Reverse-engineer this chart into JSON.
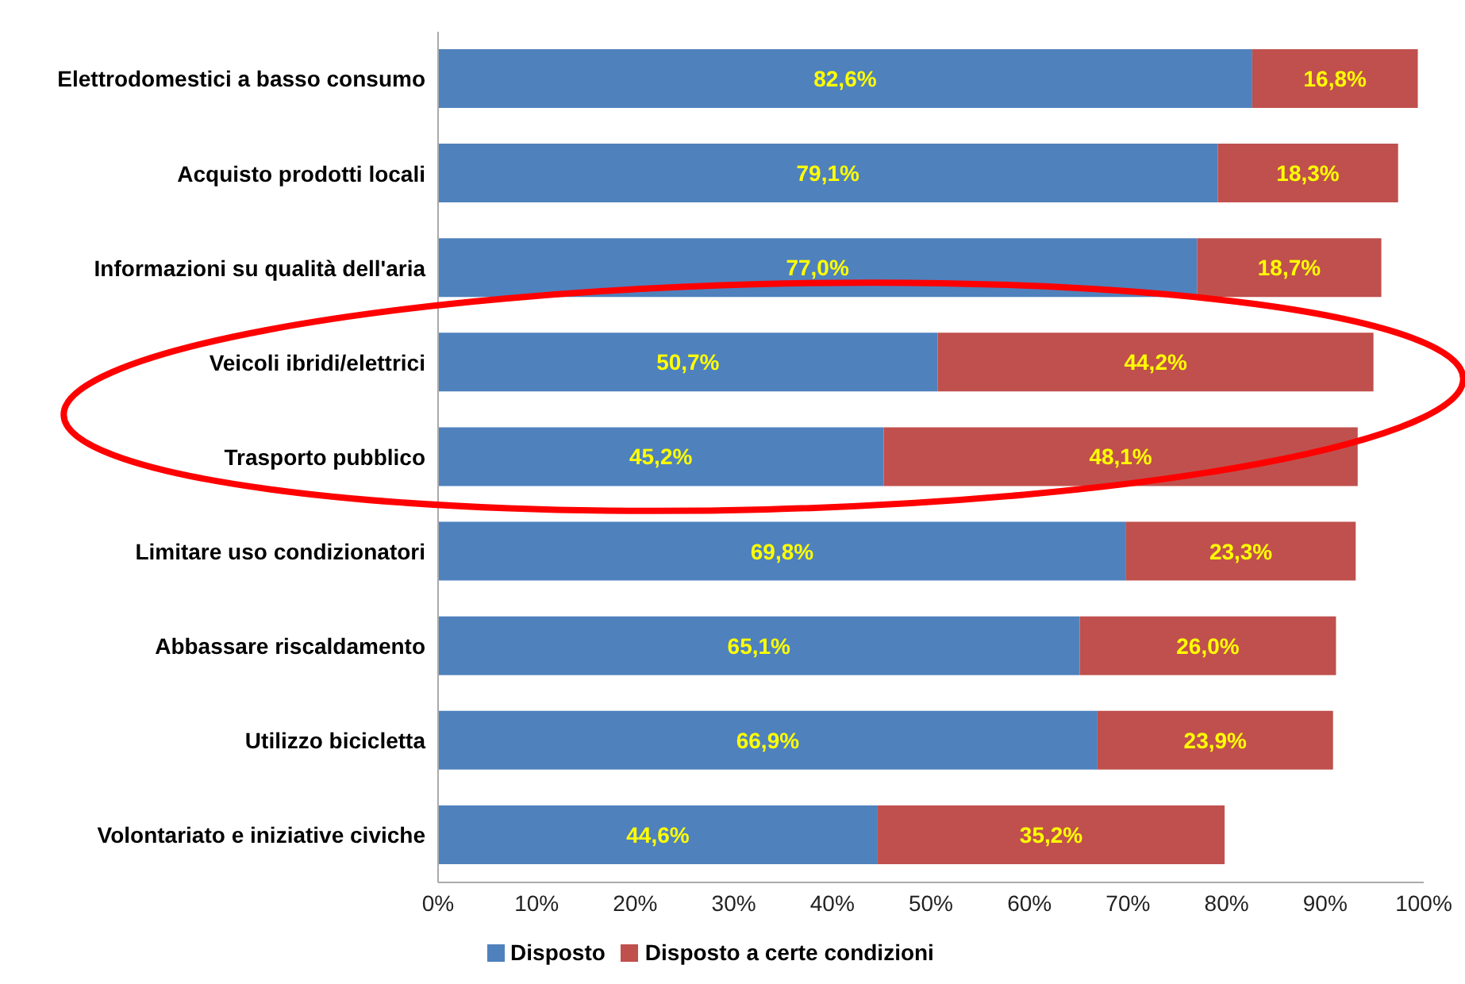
{
  "chart_data": {
    "type": "bar",
    "orientation": "horizontal",
    "stacked": true,
    "categories": [
      "Elettrodomestici a basso consumo",
      "Acquisto prodotti locali",
      "Informazioni su qualità dell'aria",
      "Veicoli ibridi/elettrici",
      "Trasporto pubblico",
      "Limitare uso condizionatori",
      "Abbassare riscaldamento",
      "Utilizzo bicicletta",
      "Volontariato e iniziative civiche"
    ],
    "series": [
      {
        "name": "Disposto",
        "color": "#4f81bd",
        "values": [
          82.6,
          79.1,
          77.0,
          50.7,
          45.2,
          69.8,
          65.1,
          66.9,
          44.6
        ],
        "value_labels": [
          "82,6%",
          "79,1%",
          "77,0%",
          "50,7%",
          "45,2%",
          "69,8%",
          "65,1%",
          "66,9%",
          "44,6%"
        ]
      },
      {
        "name": "Disposto a certe condizioni",
        "color": "#c0504d",
        "values": [
          16.8,
          18.3,
          18.7,
          44.2,
          48.1,
          23.3,
          26.0,
          23.9,
          35.2
        ],
        "value_labels": [
          "16,8%",
          "18,3%",
          "18,7%",
          "44,2%",
          "48,1%",
          "23,3%",
          "26,0%",
          "23,9%",
          "35,2%"
        ]
      }
    ],
    "xlim": [
      0,
      100
    ],
    "xticks": [
      {
        "value": 0,
        "label": "0%"
      },
      {
        "value": 10,
        "label": "10%"
      },
      {
        "value": 20,
        "label": "20%"
      },
      {
        "value": 30,
        "label": "30%"
      },
      {
        "value": 40,
        "label": "40%"
      },
      {
        "value": 50,
        "label": "50%"
      },
      {
        "value": 60,
        "label": "60%"
      },
      {
        "value": 70,
        "label": "70%"
      },
      {
        "value": 80,
        "label": "80%"
      },
      {
        "value": 90,
        "label": "90%"
      },
      {
        "value": 100,
        "label": "100%"
      }
    ],
    "grid": false,
    "legend": "bottom"
  }
}
